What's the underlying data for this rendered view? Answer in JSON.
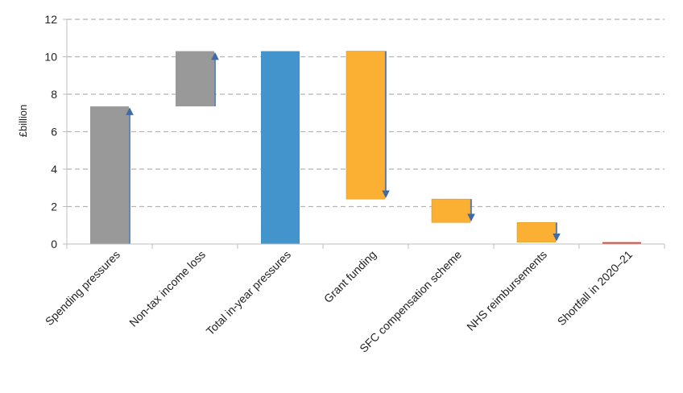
{
  "chart_data": {
    "type": "bar",
    "subtype": "waterfall",
    "ylabel": "£billion",
    "ylim": [
      0,
      12
    ],
    "yticks": [
      0,
      2,
      4,
      6,
      8,
      10,
      12
    ],
    "ytick_labels": [
      "0",
      "2",
      "4",
      "6",
      "8",
      "10",
      "12"
    ],
    "grid": true,
    "legend": "none",
    "categories": [
      "Spending pressures",
      "Non-tax income loss",
      "Total in-year pressures",
      "Grant funding",
      "SFC compensation scheme",
      "NHS reimbursements",
      "Shortfall in 2020–21"
    ],
    "bars": [
      {
        "start": 0,
        "end": 7.35,
        "color": "#999999",
        "arrow": "up"
      },
      {
        "start": 7.35,
        "end": 10.3,
        "color": "#999999",
        "arrow": "up"
      },
      {
        "start": 0,
        "end": 10.3,
        "color": "#4394cd",
        "arrow": "none"
      },
      {
        "start": 10.3,
        "end": 2.4,
        "color": "#fbb034",
        "arrow": "down"
      },
      {
        "start": 2.4,
        "end": 1.15,
        "color": "#fbb034",
        "arrow": "down"
      },
      {
        "start": 1.15,
        "end": 0.1,
        "color": "#fbb034",
        "arrow": "down"
      },
      {
        "start": 0,
        "end": 0.1,
        "color": "#e8462b",
        "arrow": "none"
      }
    ],
    "colors": {
      "increase": "#999999",
      "total": "#4394cd",
      "decrease": "#fbb034",
      "shortfall": "#e8462b",
      "arrow": "#3f6aa8",
      "grid": "#b5b5b5",
      "axis": "#bfbfbf"
    }
  }
}
